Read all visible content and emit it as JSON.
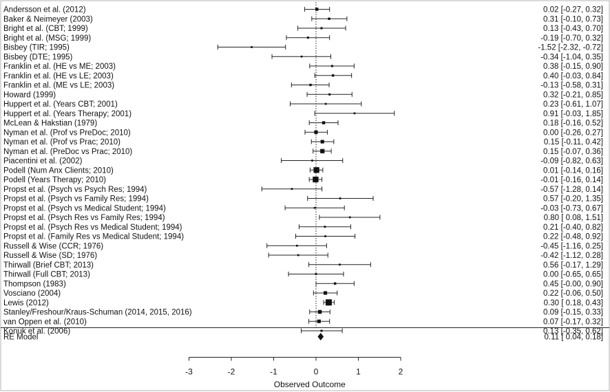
{
  "chart_data": {
    "type": "forest",
    "xlabel": "Observed Outcome",
    "xlim": [
      -3,
      2
    ],
    "x_ticks": [
      "-3",
      "-2",
      "-1",
      "0",
      "1",
      "2"
    ],
    "reference_line": 0,
    "studies": [
      {
        "label": "Andersson et al. (2012)",
        "estimate": 0.02,
        "lower": -0.27,
        "upper": 0.32,
        "text": "0.02 [-0.27, 0.32]",
        "weight": 0.35
      },
      {
        "label": "Baker & Neimeyer (2003)",
        "estimate": 0.31,
        "lower": -0.1,
        "upper": 0.73,
        "text": "0.31 [-0.10, 0.73]",
        "weight": 0.2
      },
      {
        "label": "Bright et al.  (CBT; 1999)",
        "estimate": 0.13,
        "lower": -0.43,
        "upper": 0.7,
        "text": "0.13 [-0.43, 0.70]",
        "weight": 0.15
      },
      {
        "label": "Bright et al. (MSG; 1999)",
        "estimate": -0.19,
        "lower": -0.7,
        "upper": 0.32,
        "text": "-0.19 [-0.70, 0.32]",
        "weight": 0.15
      },
      {
        "label": "Bisbey (TIR; 1995)",
        "estimate": -1.52,
        "lower": -2.32,
        "upper": -0.72,
        "text": "-1.52 [-2.32, -0.72]",
        "weight": 0.1
      },
      {
        "label": "Bisbey (DTE; 1995)",
        "estimate": -0.34,
        "lower": -1.04,
        "upper": 0.35,
        "text": "-0.34 [-1.04, 0.35]",
        "weight": 0.1
      },
      {
        "label": "Franklin et al. (HE vs ME; 2003)",
        "estimate": 0.38,
        "lower": -0.15,
        "upper": 0.9,
        "text": "0.38 [-0.15, 0.90]",
        "weight": 0.15
      },
      {
        "label": "Franklin et al. (HE vs LE; 2003)",
        "estimate": 0.4,
        "lower": -0.03,
        "upper": 0.84,
        "text": "0.40 [-0.03, 0.84]",
        "weight": 0.2
      },
      {
        "label": "Franklin et al. (ME vs LE; 2003)",
        "estimate": -0.13,
        "lower": -0.58,
        "upper": 0.31,
        "text": "-0.13 [-0.58, 0.31]",
        "weight": 0.2
      },
      {
        "label": "Howard (1999)",
        "estimate": 0.32,
        "lower": -0.21,
        "upper": 0.85,
        "text": "0.32 [-0.21, 0.85]",
        "weight": 0.15
      },
      {
        "label": "Huppert et al.  (Years CBT; 2001)",
        "estimate": 0.23,
        "lower": -0.61,
        "upper": 1.07,
        "text": "0.23 [-0.61, 1.07]",
        "weight": 0.1
      },
      {
        "label": "Huppert et al. (Years Therapy; 2001)",
        "estimate": 0.91,
        "lower": -0.03,
        "upper": 1.85,
        "text": "0.91 [-0.03, 1.85]",
        "weight": 0.1
      },
      {
        "label": "McLean & Hakstian (1979)",
        "estimate": 0.18,
        "lower": -0.16,
        "upper": 0.52,
        "text": "0.18 [-0.16, 0.52]",
        "weight": 0.35
      },
      {
        "label": "Nyman et al.  (Prof vs PreDoc; 2010)",
        "estimate": 0.0,
        "lower": -0.26,
        "upper": 0.27,
        "text": "0.00 [-0.26, 0.27]",
        "weight": 0.45
      },
      {
        "label": "Nyman et al.  (Prof vs Prac; 2010)",
        "estimate": 0.15,
        "lower": -0.11,
        "upper": 0.42,
        "text": "0.15 [-0.11, 0.42]",
        "weight": 0.45
      },
      {
        "label": "Nyman et al. (PreDoc vs Prac; 2010)",
        "estimate": 0.15,
        "lower": -0.07,
        "upper": 0.36,
        "text": "0.15 [-0.07, 0.36]",
        "weight": 0.6
      },
      {
        "label": "Piacentini et al. (2002)",
        "estimate": -0.09,
        "lower": -0.82,
        "upper": 0.63,
        "text": "-0.09 [-0.82, 0.63]",
        "weight": 0.1
      },
      {
        "label": "Podell (Num Anx Clients; 2010)",
        "estimate": 0.01,
        "lower": -0.14,
        "upper": 0.16,
        "text": "0.01 [-0.14, 0.16]",
        "weight": 0.9
      },
      {
        "label": "Podell (Years Therapy; 2010)",
        "estimate": -0.01,
        "lower": -0.16,
        "upper": 0.14,
        "text": "-0.01 [-0.16, 0.14]",
        "weight": 0.9
      },
      {
        "label": "Propst et al. (Psych vs Psych Res; 1994)",
        "estimate": -0.57,
        "lower": -1.28,
        "upper": 0.14,
        "text": "-0.57 [-1.28, 0.14]",
        "weight": 0.1
      },
      {
        "label": "Propst et al. (Psych vs Family Res; 1994)",
        "estimate": 0.57,
        "lower": -0.2,
        "upper": 1.35,
        "text": "0.57 [-0.20, 1.35]",
        "weight": 0.1
      },
      {
        "label": "Propst et al. (Psych vs Medical Student; 1994)",
        "estimate": -0.03,
        "lower": -0.73,
        "upper": 0.67,
        "text": "-0.03 [-0.73, 0.67]",
        "weight": 0.1
      },
      {
        "label": "Propst et al. (Psych Res vs Family Res; 1994)",
        "estimate": 0.8,
        "lower": 0.08,
        "upper": 1.51,
        "text": "0.80 [ 0.08, 1.51]",
        "weight": 0.1
      },
      {
        "label": "Propst et al. (Psych Res vs Medical Student; 1994)",
        "estimate": 0.21,
        "lower": -0.4,
        "upper": 0.82,
        "text": "0.21 [-0.40, 0.82]",
        "weight": 0.12
      },
      {
        "label": "Propst et al. (Family Res vs Medical Student; 1994)",
        "estimate": 0.22,
        "lower": -0.48,
        "upper": 0.92,
        "text": "0.22 [-0.48, 0.92]",
        "weight": 0.1
      },
      {
        "label": "Russell & Wise (CCR; 1976)",
        "estimate": -0.45,
        "lower": -1.16,
        "upper": 0.25,
        "text": "-0.45 [-1.16, 0.25]",
        "weight": 0.1
      },
      {
        "label": "Russell & Wise (SD; 1976)",
        "estimate": -0.42,
        "lower": -1.12,
        "upper": 0.28,
        "text": "-0.42 [-1.12, 0.28]",
        "weight": 0.1
      },
      {
        "label": "Thirwall (Brief CBT; 2013)",
        "estimate": 0.56,
        "lower": -0.17,
        "upper": 1.29,
        "text": "0.56 [-0.17, 1.29]",
        "weight": 0.1
      },
      {
        "label": "Thirwall (Full CBT; 2013)",
        "estimate": 0.0,
        "lower": -0.65,
        "upper": 0.65,
        "text": "0.00 [-0.65, 0.65]",
        "weight": 0.12
      },
      {
        "label": "Thompson (1983)",
        "estimate": 0.45,
        "lower": -0.0,
        "upper": 0.9,
        "text": "0.45 [-0.00, 0.90]",
        "weight": 0.2
      },
      {
        "label": "Vosciano (2004)",
        "estimate": 0.22,
        "lower": -0.06,
        "upper": 0.5,
        "text": "0.22 [-0.06, 0.50]",
        "weight": 0.45
      },
      {
        "label": "Lewis (2012)",
        "estimate": 0.3,
        "lower": 0.18,
        "upper": 0.43,
        "text": "0.30 [ 0.18, 0.43]",
        "weight": 1.0
      },
      {
        "label": "Stanley/Freshour/Kraus-Schuman (2014, 2015, 2016)",
        "estimate": 0.09,
        "lower": -0.15,
        "upper": 0.33,
        "text": "0.09 [-0.15, 0.33]",
        "weight": 0.5
      },
      {
        "label": "van Oppen et al. (2010)",
        "estimate": 0.07,
        "lower": -0.17,
        "upper": 0.32,
        "text": "0.07 [-0.17, 0.32]",
        "weight": 0.45
      },
      {
        "label": "Konuk et al. (2006)",
        "estimate": 0.13,
        "lower": -0.35,
        "upper": 0.62,
        "text": "0.13 [-0.35, 0.62]",
        "weight": 0.15
      }
    ],
    "summary": {
      "label": "RE Model",
      "estimate": 0.11,
      "lower": 0.04,
      "upper": 0.18,
      "text": "0.11 [ 0.04, 0.18]"
    }
  }
}
